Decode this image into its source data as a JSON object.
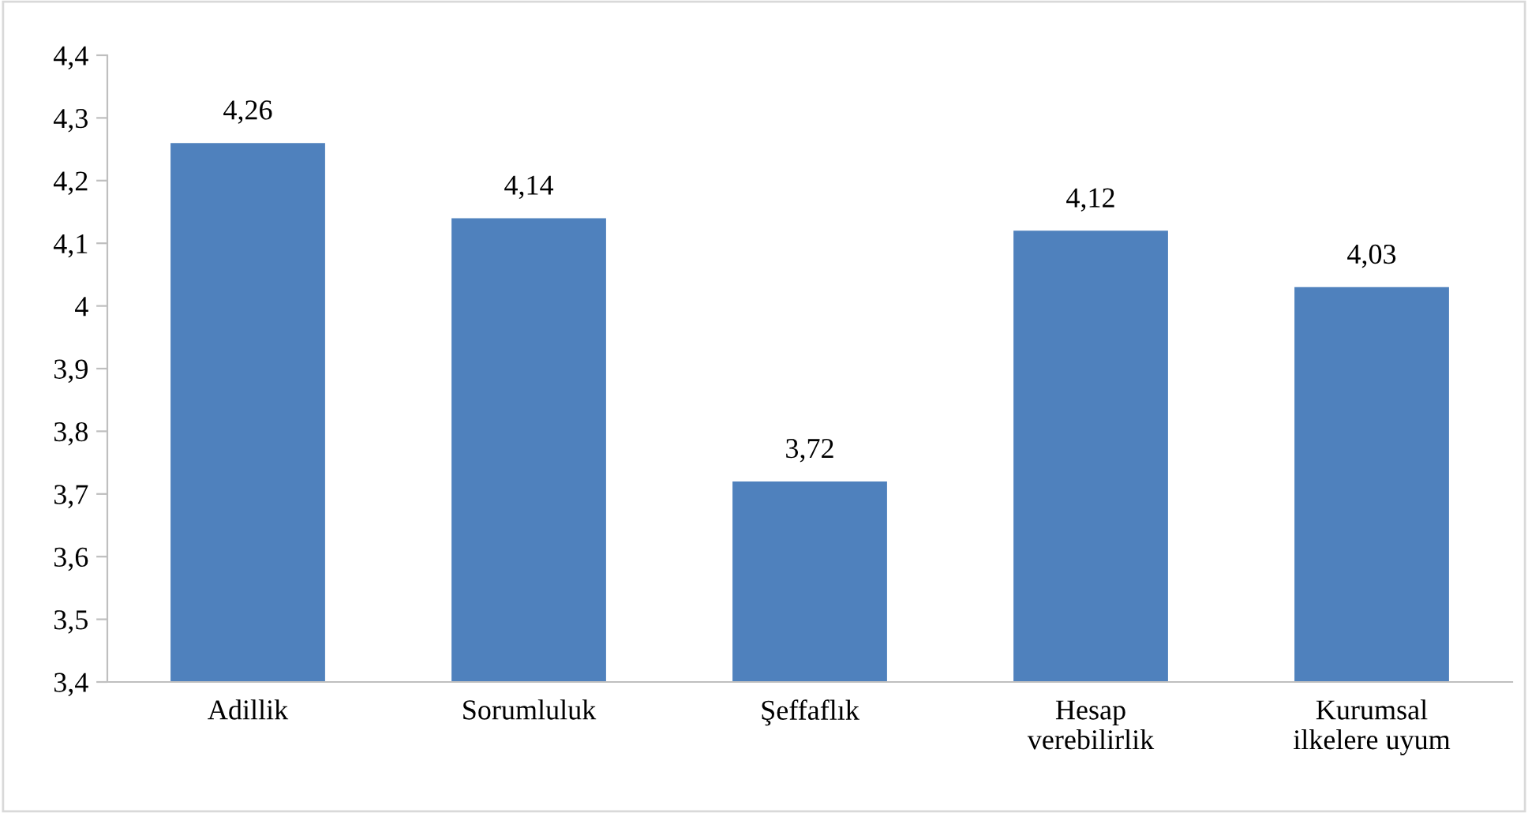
{
  "chart_data": {
    "type": "bar",
    "categories": [
      "Adillik",
      "Sorumluluk",
      "Şeffaflık",
      "Hesap\nverebilirlik",
      "Kurumsal\nilkelere uyum"
    ],
    "values": [
      4.26,
      4.14,
      3.72,
      4.12,
      4.03
    ],
    "value_labels": [
      "4,26",
      "4,14",
      "3,72",
      "4,12",
      "4,03"
    ],
    "color": "#4f81bd",
    "ylim": [
      3.4,
      4.4
    ],
    "yticks": [
      {
        "value": 3.4,
        "label": "3,4"
      },
      {
        "value": 3.5,
        "label": "3,5"
      },
      {
        "value": 3.6,
        "label": "3,6"
      },
      {
        "value": 3.7,
        "label": "3,7"
      },
      {
        "value": 3.8,
        "label": "3,8"
      },
      {
        "value": 3.9,
        "label": "3,9"
      },
      {
        "value": 4,
        "label": "4"
      },
      {
        "value": 4.1,
        "label": "4,1"
      },
      {
        "value": 4.2,
        "label": "4,2"
      },
      {
        "value": 4.3,
        "label": "4,3"
      },
      {
        "value": 4.4,
        "label": "4,4"
      }
    ],
    "grid": false
  }
}
